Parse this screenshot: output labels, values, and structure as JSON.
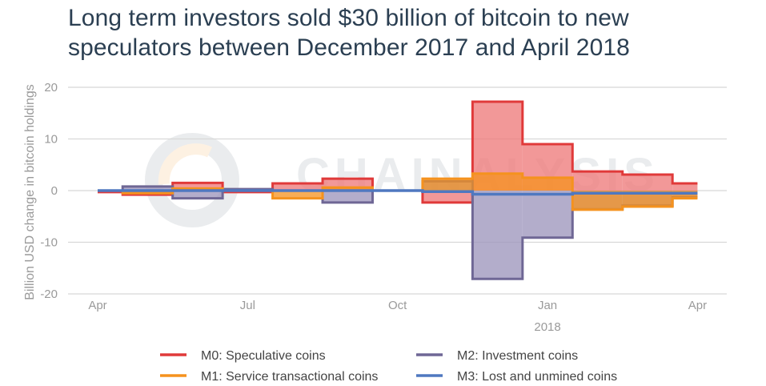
{
  "chart_data": {
    "type": "area",
    "title_lines": [
      "Long term investors sold $30 billion of bitcoin to new",
      "speculators between December 2017 and April 2018"
    ],
    "xlabel": "",
    "ylabel": "Billion USD change in bitcoin holdings",
    "ylim": [
      -20,
      20
    ],
    "yticks": [
      20,
      10,
      0,
      -10,
      -20
    ],
    "xticks": [
      {
        "month_index": 0,
        "label": "Apr",
        "sub": ""
      },
      {
        "month_index": 3,
        "label": "Jul",
        "sub": ""
      },
      {
        "month_index": 6,
        "label": "Oct",
        "sub": ""
      },
      {
        "month_index": 9,
        "label": "Jan",
        "sub": "2018"
      },
      {
        "month_index": 12,
        "label": "Apr",
        "sub": ""
      }
    ],
    "step_breaks_month_index": [
      0,
      0.5,
      1.5,
      2.5,
      3.5,
      4.5,
      5.5,
      6.5,
      7.5,
      8.5,
      9.5,
      10.5,
      11.5,
      12
    ],
    "grid": true,
    "legend_position": "bottom",
    "watermark": "CHAINALYSIS",
    "series": [
      {
        "name": "M0: Speculative coins",
        "color": "#e03a3a",
        "fill": "#ee7b7b",
        "values": [
          -0.3,
          -0.8,
          1.5,
          -0.3,
          1.4,
          2.3,
          0,
          -2.3,
          17.2,
          9.0,
          3.7,
          3.1,
          1.4
        ]
      },
      {
        "name": "M2: Investment coins",
        "color": "#6f6795",
        "fill": "#9d96bd",
        "values": [
          0,
          0.8,
          -1.5,
          0.3,
          0,
          -2.3,
          0,
          1.8,
          -17.1,
          -9.1,
          -3.6,
          -2.9,
          -1.3
        ]
      },
      {
        "name": "M1: Service transactional coins",
        "color": "#f5921e",
        "fill": "#f5921e",
        "values": [
          0,
          -0.5,
          0.4,
          0,
          -1.5,
          0.6,
          0,
          2.3,
          3.3,
          2.5,
          -3.7,
          -3.1,
          -1.5
        ]
      },
      {
        "name": "M3: Lost and unmined coins",
        "color": "#4f78c0",
        "fill": "none",
        "values": [
          0,
          0,
          0,
          0,
          0,
          0,
          0,
          -0.2,
          -0.7,
          -0.7,
          -0.5,
          -0.5,
          -0.5
        ]
      }
    ]
  }
}
